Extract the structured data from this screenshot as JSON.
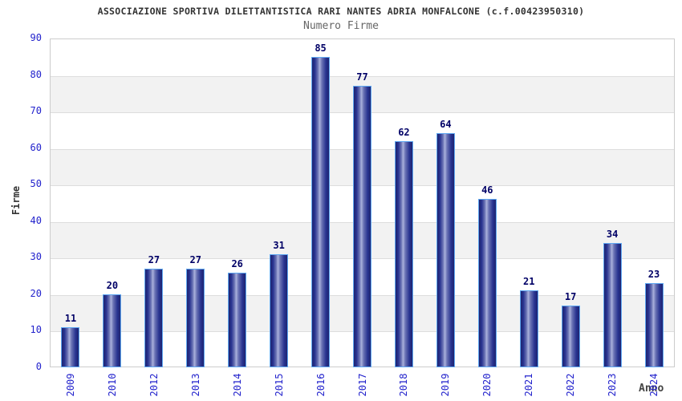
{
  "chart_data": {
    "type": "bar",
    "title": "ASSOCIAZIONE SPORTIVA DILETTANTISTICA RARI NANTES ADRIA MONFALCONE (c.f.00423950310)",
    "subtitle": "Numero Firme",
    "xlabel": "Anno",
    "ylabel": "Firme",
    "categories": [
      "2009",
      "2010",
      "2012",
      "2013",
      "2014",
      "2015",
      "2016",
      "2017",
      "2018",
      "2019",
      "2020",
      "2021",
      "2022",
      "2023",
      "2024"
    ],
    "values": [
      11,
      20,
      27,
      27,
      26,
      31,
      85,
      77,
      62,
      64,
      46,
      21,
      17,
      34,
      23
    ],
    "ylim": [
      0,
      90
    ],
    "ytick_step": 10,
    "grid": true,
    "legend": "none",
    "layout_hints": {
      "band_fill": "alternating horizontal stripes",
      "x_labels_rotated_degrees": 90
    },
    "colors": {
      "bar_dark": "#1e2470",
      "bar_mid": "#283390",
      "bar_highlight": "#aab1dc",
      "bar_border": "#5fa8f2",
      "value_label": "#000066",
      "tick_label": "#2222cc",
      "title": "#333333",
      "subtitle": "#666666",
      "axis_title": "#333333",
      "gridline": "#dddddd",
      "plot_border": "#cccccc",
      "band_gray": "#f2f2f2",
      "background": "#ffffff"
    }
  }
}
